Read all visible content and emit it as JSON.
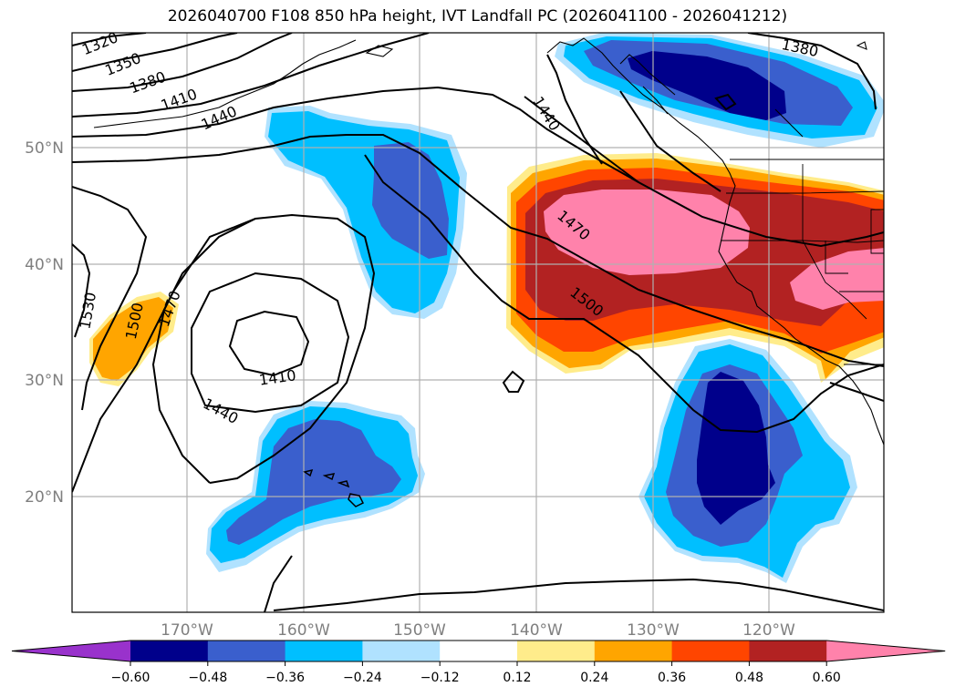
{
  "title": "2026040700 F108 850 hPa height, IVT Landfall PC (2026041100 - 2026041212)",
  "axes": {
    "lon_labels": [
      "170°W",
      "160°W",
      "150°W",
      "140°W",
      "130°W",
      "120°W"
    ],
    "lat_labels": [
      "50°N",
      "40°N",
      "30°N",
      "20°N"
    ],
    "grid": true
  },
  "colorbar": {
    "orientation": "horizontal",
    "extend": "both",
    "colors": [
      "#9932cc",
      "#00008b",
      "#3a5fcd",
      "#00bfff",
      "#b0e2ff",
      "#ffffff",
      "#ffec8b",
      "#ffa500",
      "#ff4500",
      "#b22222",
      "#ff82ab"
    ],
    "tick_labels": [
      "−0.60",
      "−0.48",
      "−0.36",
      "−0.24",
      "−0.12",
      "0.12",
      "0.24",
      "0.36",
      "0.48",
      "0.60"
    ]
  },
  "contours": {
    "labels": [
      "1320",
      "1350",
      "1380",
      "1410",
      "1440",
      "1530",
      "1500",
      "1470",
      "1410",
      "1440",
      "1440",
      "1470",
      "1500",
      "1380"
    ]
  },
  "colors": {
    "frame": "#000000",
    "grid": "#b0b0b0",
    "contour": "#000000",
    "coast": "#000000"
  }
}
